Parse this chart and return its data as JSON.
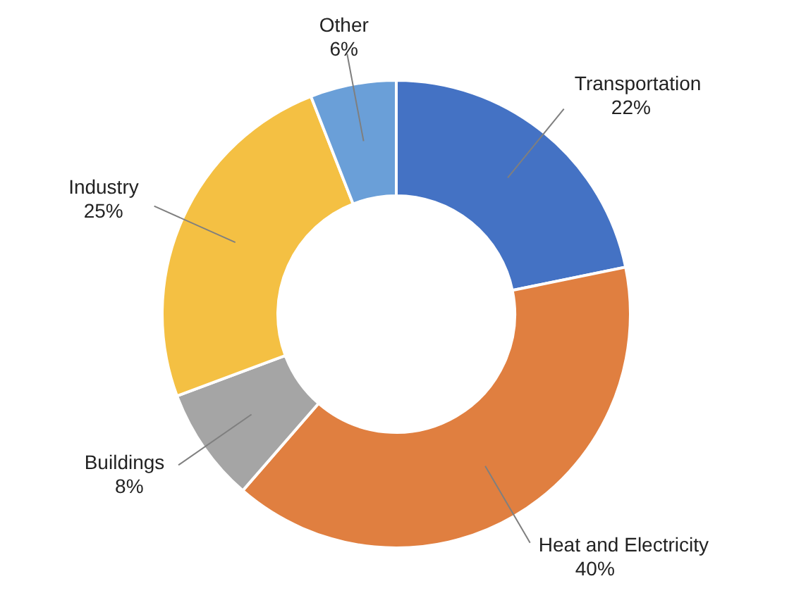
{
  "chart_data": {
    "type": "donut",
    "categories": [
      "Transportation",
      "Heat and Electricity",
      "Buildings",
      "Industry",
      "Other"
    ],
    "values": [
      22,
      40,
      8,
      25,
      6
    ],
    "colors": [
      "#4472c4",
      "#e07f40",
      "#a5a5a5",
      "#f4c043",
      "#6a9fd8"
    ],
    "value_labels": [
      "22%",
      "40%",
      "8%",
      "25%",
      "6%"
    ]
  }
}
